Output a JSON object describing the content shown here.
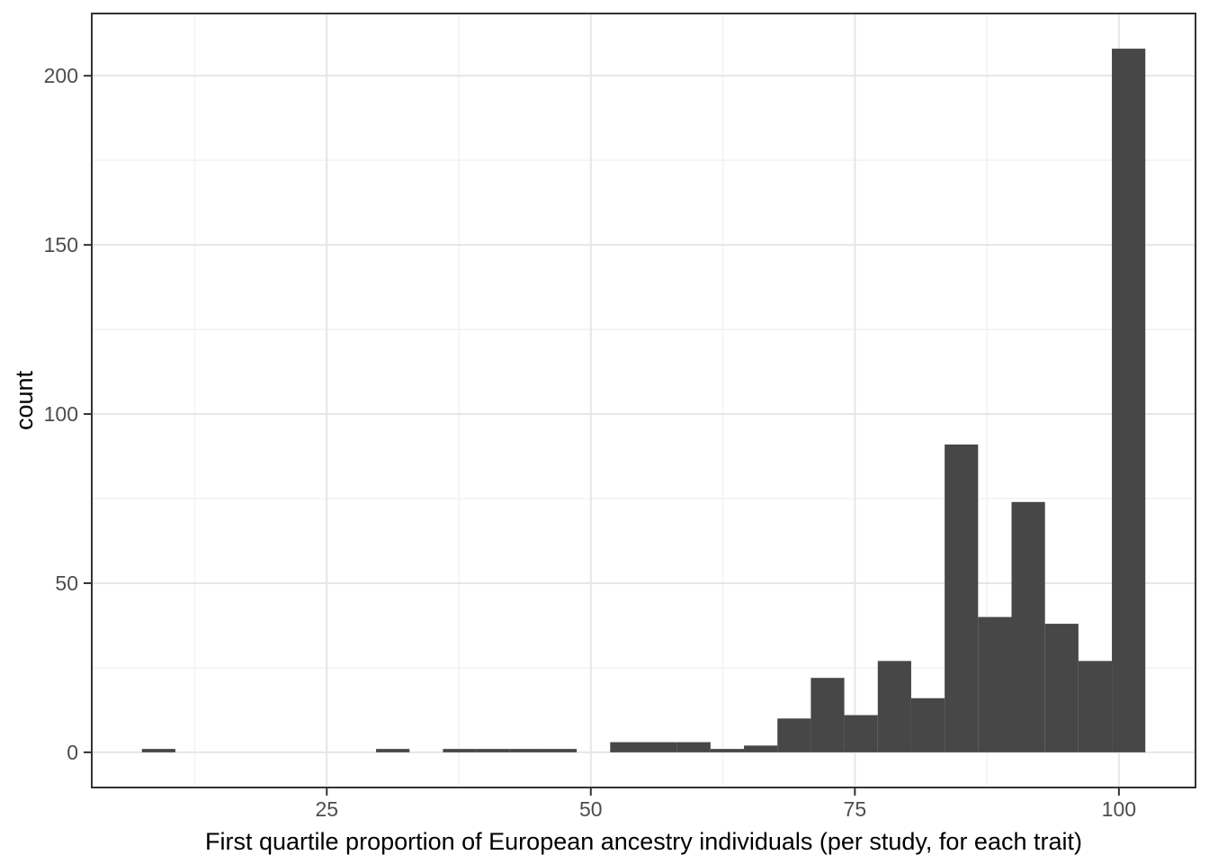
{
  "chart_data": {
    "type": "bar",
    "subtype": "histogram",
    "title": "",
    "xlabel": "First quartile proportion of European ancestry individuals (per study, for each trait)",
    "ylabel": "count",
    "x_ticks": [
      25,
      50,
      75,
      100
    ],
    "x_tick_labels": [
      "25",
      "50",
      "75",
      "100"
    ],
    "x_minor_ticks": [
      12.5,
      37.5,
      62.5,
      87.5
    ],
    "y_ticks": [
      0,
      50,
      100,
      150,
      200
    ],
    "y_tick_labels": [
      "0",
      "50",
      "100",
      "150",
      "200"
    ],
    "y_minor_ticks": [
      25,
      75,
      125,
      175
    ],
    "xlim": [
      2.75,
      107.25
    ],
    "ylim": [
      -10.4,
      218.4
    ],
    "bin_width": 3.167,
    "grid": true,
    "legend_position": "none",
    "bins": [
      {
        "x0": 7.5,
        "x1": 10.667,
        "count": 1
      },
      {
        "x0": 10.667,
        "x1": 13.833,
        "count": 0
      },
      {
        "x0": 13.833,
        "x1": 17.0,
        "count": 0
      },
      {
        "x0": 17.0,
        "x1": 20.167,
        "count": 0
      },
      {
        "x0": 20.167,
        "x1": 23.333,
        "count": 0
      },
      {
        "x0": 23.333,
        "x1": 26.5,
        "count": 0
      },
      {
        "x0": 26.5,
        "x1": 29.667,
        "count": 0
      },
      {
        "x0": 29.667,
        "x1": 32.833,
        "count": 1
      },
      {
        "x0": 32.833,
        "x1": 36.0,
        "count": 0
      },
      {
        "x0": 36.0,
        "x1": 39.167,
        "count": 1
      },
      {
        "x0": 39.167,
        "x1": 42.333,
        "count": 1
      },
      {
        "x0": 42.333,
        "x1": 45.5,
        "count": 1
      },
      {
        "x0": 45.5,
        "x1": 48.667,
        "count": 1
      },
      {
        "x0": 48.667,
        "x1": 51.833,
        "count": 0
      },
      {
        "x0": 51.833,
        "x1": 55.0,
        "count": 3
      },
      {
        "x0": 55.0,
        "x1": 58.167,
        "count": 3
      },
      {
        "x0": 58.167,
        "x1": 61.333,
        "count": 3
      },
      {
        "x0": 61.333,
        "x1": 64.5,
        "count": 1
      },
      {
        "x0": 64.5,
        "x1": 67.667,
        "count": 2
      },
      {
        "x0": 67.667,
        "x1": 70.833,
        "count": 10
      },
      {
        "x0": 70.833,
        "x1": 74.0,
        "count": 22
      },
      {
        "x0": 74.0,
        "x1": 77.167,
        "count": 11
      },
      {
        "x0": 77.167,
        "x1": 80.333,
        "count": 27
      },
      {
        "x0": 80.333,
        "x1": 83.5,
        "count": 16
      },
      {
        "x0": 83.5,
        "x1": 86.667,
        "count": 91
      },
      {
        "x0": 86.667,
        "x1": 89.833,
        "count": 40
      },
      {
        "x0": 89.833,
        "x1": 93.0,
        "count": 74
      },
      {
        "x0": 93.0,
        "x1": 96.167,
        "count": 38
      },
      {
        "x0": 96.167,
        "x1": 99.333,
        "count": 27
      },
      {
        "x0": 99.333,
        "x1": 102.5,
        "count": 208
      }
    ],
    "colors": {
      "bar_fill": "#474747",
      "panel_border": "#333333",
      "tick_mark": "#333333",
      "grid_major": "#e6e6e6",
      "grid_minor": "#f2f2f2",
      "tick_label": "#4d4d4d",
      "axis_title": "#000000",
      "background": "#ffffff"
    }
  }
}
